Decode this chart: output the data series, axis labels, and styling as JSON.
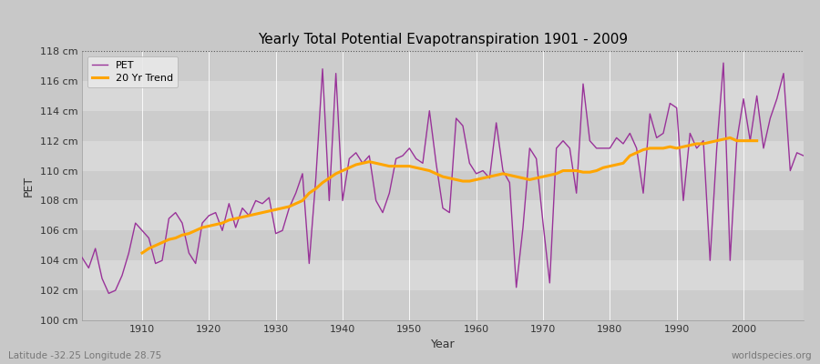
{
  "title": "Yearly Total Potential Evapotranspiration 1901 - 2009",
  "xlabel": "Year",
  "ylabel": "PET",
  "subtitle_left": "Latitude -32.25 Longitude 28.75",
  "subtitle_right": "worldspecies.org",
  "ylim": [
    100,
    118
  ],
  "ytick_labels": [
    "100 cm",
    "102 cm",
    "104 cm",
    "106 cm",
    "108 cm",
    "110 cm",
    "112 cm",
    "114 cm",
    "116 cm",
    "118 cm"
  ],
  "ytick_values": [
    100,
    102,
    104,
    106,
    108,
    110,
    112,
    114,
    116,
    118
  ],
  "pet_color": "#993399",
  "trend_color": "#FFA500",
  "fig_bg_color": "#C8C8C8",
  "plot_bg_color": "#D8D8D8",
  "legend_bg": "#E8E8E8",
  "years": [
    1901,
    1902,
    1903,
    1904,
    1905,
    1906,
    1907,
    1908,
    1909,
    1910,
    1911,
    1912,
    1913,
    1914,
    1915,
    1916,
    1917,
    1918,
    1919,
    1920,
    1921,
    1922,
    1923,
    1924,
    1925,
    1926,
    1927,
    1928,
    1929,
    1930,
    1931,
    1932,
    1933,
    1934,
    1935,
    1936,
    1937,
    1938,
    1939,
    1940,
    1941,
    1942,
    1943,
    1944,
    1945,
    1946,
    1947,
    1948,
    1949,
    1950,
    1951,
    1952,
    1953,
    1954,
    1955,
    1956,
    1957,
    1958,
    1959,
    1960,
    1961,
    1962,
    1963,
    1964,
    1965,
    1966,
    1967,
    1968,
    1969,
    1970,
    1971,
    1972,
    1973,
    1974,
    1975,
    1976,
    1977,
    1978,
    1979,
    1980,
    1981,
    1982,
    1983,
    1984,
    1985,
    1986,
    1987,
    1988,
    1989,
    1990,
    1991,
    1992,
    1993,
    1994,
    1995,
    1996,
    1997,
    1998,
    1999,
    2000,
    2001,
    2002,
    2003,
    2004,
    2005,
    2006,
    2007,
    2008,
    2009
  ],
  "pet_values": [
    104.2,
    103.5,
    104.8,
    102.8,
    101.8,
    102.0,
    103.0,
    104.5,
    106.5,
    106.0,
    105.5,
    103.8,
    104.0,
    106.8,
    107.2,
    106.5,
    104.5,
    103.8,
    106.5,
    107.0,
    107.2,
    106.0,
    107.8,
    106.2,
    107.5,
    107.0,
    108.0,
    107.8,
    108.2,
    105.8,
    106.0,
    107.5,
    108.5,
    109.8,
    103.8,
    109.5,
    116.8,
    108.0,
    116.5,
    108.0,
    110.8,
    111.2,
    110.5,
    111.0,
    108.0,
    107.2,
    108.5,
    110.8,
    111.0,
    111.5,
    110.8,
    110.5,
    114.0,
    110.5,
    107.5,
    107.2,
    113.5,
    113.0,
    110.5,
    109.8,
    110.0,
    109.5,
    113.2,
    110.0,
    109.2,
    102.2,
    106.2,
    111.5,
    110.8,
    106.5,
    102.5,
    111.5,
    112.0,
    111.5,
    108.5,
    115.8,
    112.0,
    111.5,
    111.5,
    111.5,
    112.2,
    111.8,
    112.5,
    111.5,
    108.5,
    113.8,
    112.2,
    112.5,
    114.5,
    114.2,
    108.0,
    112.5,
    111.5,
    112.0,
    104.0,
    111.5,
    117.2,
    104.0,
    112.0,
    114.8,
    112.0,
    115.0,
    111.5,
    113.5,
    114.8,
    116.5,
    110.0,
    111.2,
    111.0
  ],
  "trend_values": [
    null,
    null,
    null,
    null,
    null,
    null,
    null,
    null,
    null,
    104.5,
    104.8,
    105.0,
    105.2,
    105.4,
    105.5,
    105.7,
    105.8,
    106.0,
    106.2,
    106.3,
    106.4,
    106.5,
    106.7,
    106.8,
    106.9,
    107.0,
    107.1,
    107.2,
    107.3,
    107.4,
    107.5,
    107.6,
    107.8,
    108.0,
    108.5,
    108.8,
    109.2,
    109.5,
    109.8,
    110.0,
    110.2,
    110.4,
    110.5,
    110.6,
    110.5,
    110.4,
    110.3,
    110.3,
    110.3,
    110.3,
    110.2,
    110.1,
    110.0,
    109.8,
    109.6,
    109.5,
    109.4,
    109.3,
    109.3,
    109.4,
    109.5,
    109.6,
    109.7,
    109.8,
    109.7,
    109.6,
    109.5,
    109.4,
    109.5,
    109.6,
    109.7,
    109.8,
    110.0,
    110.0,
    110.0,
    109.9,
    109.9,
    110.0,
    110.2,
    110.3,
    110.4,
    110.5,
    111.0,
    111.2,
    111.4,
    111.5,
    111.5,
    111.5,
    111.6,
    111.5,
    111.6,
    111.7,
    111.8,
    111.8,
    111.9,
    112.0,
    112.1,
    112.2,
    112.0,
    112.0,
    112.0,
    112.0,
    null,
    null,
    null,
    null,
    null,
    null
  ]
}
